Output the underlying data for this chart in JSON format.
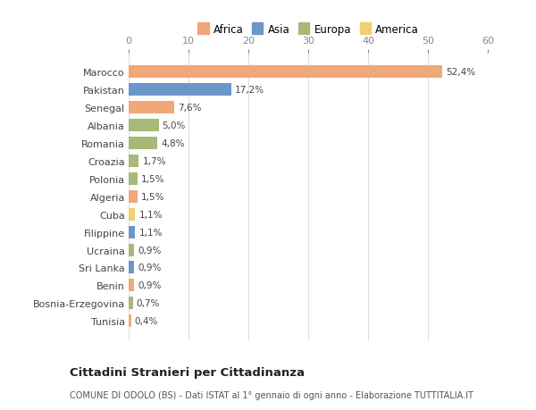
{
  "countries": [
    "Marocco",
    "Pakistan",
    "Senegal",
    "Albania",
    "Romania",
    "Croazia",
    "Polonia",
    "Algeria",
    "Cuba",
    "Filippine",
    "Ucraina",
    "Sri Lanka",
    "Benin",
    "Bosnia-Erzegovina",
    "Tunisia"
  ],
  "values": [
    52.4,
    17.2,
    7.6,
    5.0,
    4.8,
    1.7,
    1.5,
    1.5,
    1.1,
    1.1,
    0.9,
    0.9,
    0.9,
    0.7,
    0.4
  ],
  "labels": [
    "52,4%",
    "17,2%",
    "7,6%",
    "5,0%",
    "4,8%",
    "1,7%",
    "1,5%",
    "1,5%",
    "1,1%",
    "1,1%",
    "0,9%",
    "0,9%",
    "0,9%",
    "0,7%",
    "0,4%"
  ],
  "continents": [
    "Africa",
    "Asia",
    "Africa",
    "Europa",
    "Europa",
    "Europa",
    "Europa",
    "Africa",
    "America",
    "Asia",
    "Europa",
    "Asia",
    "Africa",
    "Europa",
    "Africa"
  ],
  "continent_colors": {
    "Africa": "#F0A878",
    "Asia": "#6B96C8",
    "Europa": "#A8B878",
    "America": "#F0D070"
  },
  "legend_order": [
    "Africa",
    "Asia",
    "Europa",
    "America"
  ],
  "background_color": "#ffffff",
  "plot_bg_color": "#ffffff",
  "title": "Cittadini Stranieri per Cittadinanza",
  "subtitle": "COMUNE DI ODOLO (BS) - Dati ISTAT al 1° gennaio di ogni anno - Elaborazione TUTTITALIA.IT",
  "xlim": [
    0,
    60
  ],
  "xticks": [
    0,
    10,
    20,
    30,
    40,
    50,
    60
  ]
}
